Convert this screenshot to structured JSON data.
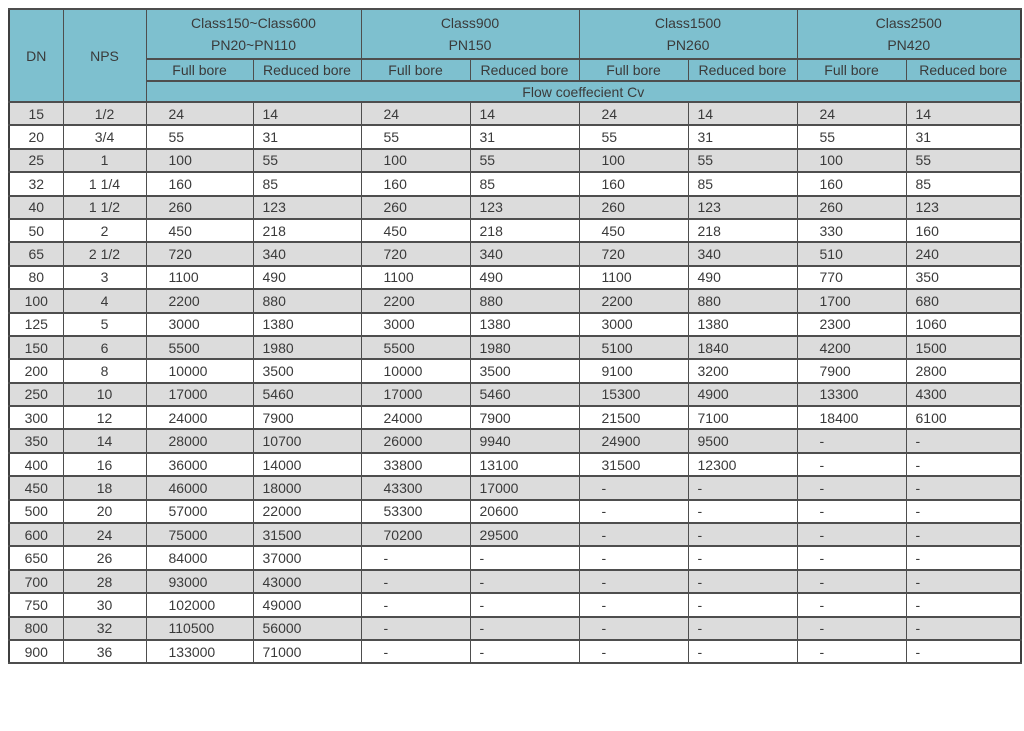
{
  "colors": {
    "header_bg": "#7ec0cf",
    "row_alt_bg": "#dcdcdc",
    "border_color": "#4e4e4e",
    "outer_border_color": "#3f3f3f",
    "text_color": "#3a3a3a",
    "page_bg": "#ffffff"
  },
  "header": {
    "dn": "DN",
    "nps": "NPS",
    "classes": [
      {
        "name": "Class150~Class600",
        "pn": "PN20~PN110"
      },
      {
        "name": "Class900",
        "pn": "PN150"
      },
      {
        "name": "Class1500",
        "pn": "PN260"
      },
      {
        "name": "Class2500",
        "pn": "PN420"
      }
    ],
    "full_bore": "Full bore",
    "reduced_bore": "Reduced bore",
    "flow_label": "Flow coeffecient Cv"
  },
  "table": {
    "rows": [
      [
        "15",
        "1/2",
        "24",
        "14",
        "24",
        "14",
        "24",
        "14",
        "24",
        "14"
      ],
      [
        "20",
        "3/4",
        "55",
        "31",
        "55",
        "31",
        "55",
        "31",
        "55",
        "31"
      ],
      [
        "25",
        "1",
        "100",
        "55",
        "100",
        "55",
        "100",
        "55",
        "100",
        "55"
      ],
      [
        "32",
        "1 1/4",
        "160",
        "85",
        "160",
        "85",
        "160",
        "85",
        "160",
        "85"
      ],
      [
        "40",
        "1 1/2",
        "260",
        "123",
        "260",
        "123",
        "260",
        "123",
        "260",
        "123"
      ],
      [
        "50",
        "2",
        "450",
        "218",
        "450",
        "218",
        "450",
        "218",
        "330",
        "160"
      ],
      [
        "65",
        "2 1/2",
        "720",
        "340",
        "720",
        "340",
        "720",
        "340",
        "510",
        "240"
      ],
      [
        "80",
        "3",
        "1100",
        "490",
        "1100",
        "490",
        "1100",
        "490",
        "770",
        "350"
      ],
      [
        "100",
        "4",
        "2200",
        "880",
        "2200",
        "880",
        "2200",
        "880",
        "1700",
        "680"
      ],
      [
        "125",
        "5",
        "3000",
        "1380",
        "3000",
        "1380",
        "3000",
        "1380",
        "2300",
        "1060"
      ],
      [
        "150",
        "6",
        "5500",
        "1980",
        "5500",
        "1980",
        "5100",
        "1840",
        "4200",
        "1500"
      ],
      [
        "200",
        "8",
        "10000",
        "3500",
        "10000",
        "3500",
        "9100",
        "3200",
        "7900",
        "2800"
      ],
      [
        "250",
        "10",
        "17000",
        "5460",
        "17000",
        "5460",
        "15300",
        "4900",
        "13300",
        "4300"
      ],
      [
        "300",
        "12",
        "24000",
        "7900",
        "24000",
        "7900",
        "21500",
        "7100",
        "18400",
        "6100"
      ],
      [
        "350",
        "14",
        "28000",
        "10700",
        "26000",
        "9940",
        "24900",
        "9500",
        "-",
        "-"
      ],
      [
        "400",
        "16",
        "36000",
        "14000",
        "33800",
        "13100",
        "31500",
        "12300",
        "-",
        "-"
      ],
      [
        "450",
        "18",
        "46000",
        "18000",
        "43300",
        "17000",
        "-",
        "-",
        "-",
        "-"
      ],
      [
        "500",
        "20",
        "57000",
        "22000",
        "53300",
        "20600",
        "-",
        "-",
        "-",
        "-"
      ],
      [
        "600",
        "24",
        "75000",
        "31500",
        "70200",
        "29500",
        "-",
        "-",
        "-",
        "-"
      ],
      [
        "650",
        "26",
        "84000",
        "37000",
        "-",
        "-",
        "-",
        "-",
        "-",
        "-"
      ],
      [
        "700",
        "28",
        "93000",
        "43000",
        "-",
        "-",
        "-",
        "-",
        "-",
        "-"
      ],
      [
        "750",
        "30",
        "102000",
        "49000",
        "-",
        "-",
        "-",
        "-",
        "-",
        "-"
      ],
      [
        "800",
        "32",
        "110500",
        "56000",
        "-",
        "-",
        "-",
        "-",
        "-",
        "-"
      ],
      [
        "900",
        "36",
        "133000",
        "71000",
        "-",
        "-",
        "-",
        "-",
        "-",
        "-"
      ]
    ]
  }
}
